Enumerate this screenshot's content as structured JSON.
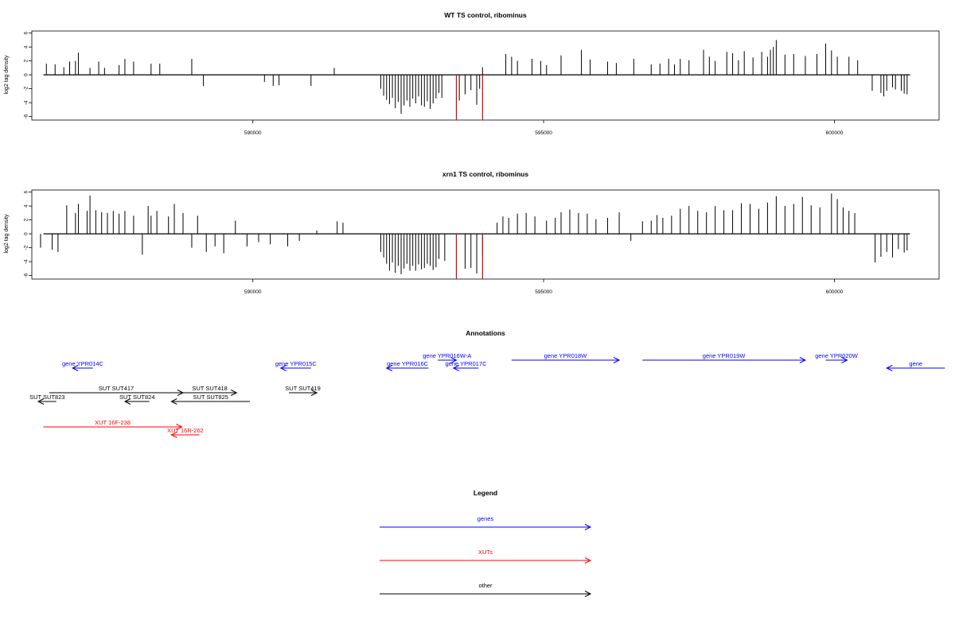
{
  "chart_data": [
    {
      "type": "bar",
      "title": "WT TS control, ribominus",
      "xlabel": "",
      "ylabel": "log2 tag density",
      "xlim": [
        586200,
        601800
      ],
      "ylim": [
        -6.5,
        6.3
      ],
      "yticks": [
        -6,
        -4,
        -2,
        0,
        2,
        4,
        6
      ],
      "xticks": [
        590000,
        595000,
        600000
      ],
      "xtick_labels": [
        "590000",
        "595000",
        "600000"
      ],
      "series": [
        {
          "color": "#000000",
          "points": [
            [
              586450,
              1.6
            ],
            [
              586600,
              1.5
            ],
            [
              586750,
              1.1
            ],
            [
              586850,
              1.9
            ],
            [
              586950,
              2.0
            ],
            [
              587000,
              3.2
            ],
            [
              587200,
              1.0
            ],
            [
              587350,
              1.9
            ],
            [
              587450,
              1.0
            ],
            [
              587700,
              1.4
            ],
            [
              587800,
              2.3
            ],
            [
              587950,
              1.9
            ],
            [
              588250,
              1.6
            ],
            [
              588400,
              1.6
            ],
            [
              588950,
              2.3
            ],
            [
              589150,
              -1.6
            ],
            [
              590200,
              -1.0
            ],
            [
              590350,
              -1.6
            ],
            [
              590450,
              -1.5
            ],
            [
              591000,
              -1.6
            ],
            [
              591400,
              1.0
            ],
            [
              592200,
              -2.0
            ],
            [
              592250,
              -3.0
            ],
            [
              592300,
              -3.6
            ],
            [
              592350,
              -4.2
            ],
            [
              592400,
              -3.3
            ],
            [
              592450,
              -4.8
            ],
            [
              592500,
              -3.9
            ],
            [
              592550,
              -5.6
            ],
            [
              592600,
              -4.4
            ],
            [
              592650,
              -3.7
            ],
            [
              592700,
              -4.6
            ],
            [
              592750,
              -3.4
            ],
            [
              592800,
              -4.1
            ],
            [
              592850,
              -3.1
            ],
            [
              592900,
              -4.4
            ],
            [
              592950,
              -4.6
            ],
            [
              593000,
              -3.8
            ],
            [
              593050,
              -4.9
            ],
            [
              593100,
              -4.1
            ],
            [
              593150,
              -3.4
            ],
            [
              593200,
              -2.6
            ],
            [
              593250,
              -3.3
            ],
            [
              593550,
              -3.7
            ],
            [
              593650,
              -2.8
            ],
            [
              593750,
              -2.2
            ],
            [
              593850,
              -4.3
            ],
            [
              593900,
              -2.0
            ],
            [
              593950,
              1.1
            ],
            [
              594350,
              3.0
            ],
            [
              594450,
              2.6
            ],
            [
              594550,
              2.0
            ],
            [
              594800,
              2.3
            ],
            [
              594950,
              2.0
            ],
            [
              595050,
              1.4
            ],
            [
              595300,
              2.8
            ],
            [
              595650,
              3.6
            ],
            [
              595800,
              2.2
            ],
            [
              596100,
              1.9
            ],
            [
              596250,
              1.7
            ],
            [
              596550,
              2.3
            ],
            [
              596850,
              1.5
            ],
            [
              597000,
              1.6
            ],
            [
              597150,
              2.3
            ],
            [
              597250,
              1.5
            ],
            [
              597350,
              2.3
            ],
            [
              597500,
              2.1
            ],
            [
              597750,
              3.6
            ],
            [
              597850,
              2.6
            ],
            [
              597950,
              2.0
            ],
            [
              598150,
              3.3
            ],
            [
              598250,
              3.1
            ],
            [
              598350,
              2.1
            ],
            [
              598450,
              3.4
            ],
            [
              598600,
              2.5
            ],
            [
              598750,
              3.3
            ],
            [
              598850,
              2.6
            ],
            [
              598900,
              3.6
            ],
            [
              598950,
              4.0
            ],
            [
              599000,
              5.0
            ],
            [
              599150,
              2.9
            ],
            [
              599300,
              3.0
            ],
            [
              599500,
              2.7
            ],
            [
              599700,
              3.0
            ],
            [
              599850,
              4.5
            ],
            [
              599950,
              3.5
            ],
            [
              600050,
              2.6
            ],
            [
              600250,
              2.6
            ],
            [
              600400,
              2.1
            ],
            [
              600650,
              -2.3
            ],
            [
              600800,
              -2.6
            ],
            [
              600850,
              -3.1
            ],
            [
              600900,
              -2.3
            ],
            [
              601000,
              -1.8
            ],
            [
              601050,
              -2.1
            ],
            [
              601150,
              -2.3
            ],
            [
              601200,
              -2.7
            ],
            [
              601250,
              -2.8
            ]
          ]
        },
        {
          "color": "#e00000",
          "points": [
            [
              593500,
              -6.5
            ],
            [
              593950,
              -6.5
            ]
          ]
        }
      ]
    },
    {
      "type": "bar",
      "title": "xrn1 TS control, ribominus",
      "xlabel": "",
      "ylabel": "log2 tag density",
      "xlim": [
        586200,
        601800
      ],
      "ylim": [
        -6.5,
        6.3
      ],
      "yticks": [
        -6,
        -4,
        -2,
        0,
        2,
        4,
        6
      ],
      "xticks": [
        590000,
        595000,
        600000
      ],
      "xtick_labels": [
        "590000",
        "595000",
        "600000"
      ],
      "series": [
        {
          "color": "#000000",
          "points": [
            [
              586350,
              -2.0
            ],
            [
              586550,
              -2.3
            ],
            [
              586650,
              -2.6
            ],
            [
              586800,
              4.1
            ],
            [
              586950,
              3.0
            ],
            [
              587000,
              4.3
            ],
            [
              587150,
              3.3
            ],
            [
              587200,
              5.5
            ],
            [
              587300,
              3.4
            ],
            [
              587400,
              3.1
            ],
            [
              587500,
              3.0
            ],
            [
              587600,
              3.3
            ],
            [
              587700,
              2.9
            ],
            [
              587800,
              3.3
            ],
            [
              587950,
              2.6
            ],
            [
              588100,
              -3.0
            ],
            [
              588200,
              4.0
            ],
            [
              588250,
              2.6
            ],
            [
              588350,
              3.3
            ],
            [
              588550,
              2.5
            ],
            [
              588650,
              4.3
            ],
            [
              588800,
              3.0
            ],
            [
              588950,
              -2.0
            ],
            [
              589050,
              2.6
            ],
            [
              589200,
              -2.6
            ],
            [
              589350,
              -1.8
            ],
            [
              589500,
              -2.8
            ],
            [
              589700,
              1.9
            ],
            [
              589900,
              -1.8
            ],
            [
              590100,
              -1.2
            ],
            [
              590300,
              -1.5
            ],
            [
              590600,
              -1.8
            ],
            [
              590800,
              -1.0
            ],
            [
              591100,
              0.5
            ],
            [
              591450,
              1.8
            ],
            [
              591550,
              1.6
            ],
            [
              592200,
              -2.6
            ],
            [
              592250,
              -3.4
            ],
            [
              592300,
              -4.3
            ],
            [
              592350,
              -5.3
            ],
            [
              592400,
              -4.1
            ],
            [
              592450,
              -5.6
            ],
            [
              592500,
              -4.6
            ],
            [
              592550,
              -5.8
            ],
            [
              592600,
              -5.0
            ],
            [
              592650,
              -4.3
            ],
            [
              592700,
              -5.3
            ],
            [
              592750,
              -4.6
            ],
            [
              592800,
              -5.3
            ],
            [
              592850,
              -4.4
            ],
            [
              592900,
              -5.1
            ],
            [
              592950,
              -4.9
            ],
            [
              593000,
              -4.3
            ],
            [
              593050,
              -4.6
            ],
            [
              593100,
              -5.2
            ],
            [
              593150,
              -4.8
            ],
            [
              593200,
              -3.6
            ],
            [
              593300,
              -3.9
            ],
            [
              593650,
              -5.0
            ],
            [
              593750,
              -4.9
            ],
            [
              593850,
              -5.7
            ],
            [
              593950,
              -3.1
            ],
            [
              594200,
              1.6
            ],
            [
              594300,
              2.5
            ],
            [
              594400,
              2.3
            ],
            [
              594550,
              2.9
            ],
            [
              594700,
              3.0
            ],
            [
              594850,
              2.5
            ],
            [
              595050,
              1.9
            ],
            [
              595200,
              2.3
            ],
            [
              595300,
              3.1
            ],
            [
              595450,
              3.5
            ],
            [
              595600,
              3.0
            ],
            [
              595750,
              2.9
            ],
            [
              595900,
              2.1
            ],
            [
              596100,
              2.3
            ],
            [
              596300,
              3.1
            ],
            [
              596500,
              -1.0
            ],
            [
              596700,
              1.8
            ],
            [
              596850,
              1.9
            ],
            [
              596950,
              2.7
            ],
            [
              597050,
              2.3
            ],
            [
              597200,
              2.6
            ],
            [
              597350,
              3.6
            ],
            [
              597500,
              4.0
            ],
            [
              597650,
              3.3
            ],
            [
              597800,
              3.1
            ],
            [
              597950,
              4.0
            ],
            [
              598100,
              3.4
            ],
            [
              598250,
              3.4
            ],
            [
              598400,
              4.4
            ],
            [
              598550,
              4.3
            ],
            [
              598700,
              3.6
            ],
            [
              598850,
              4.5
            ],
            [
              599000,
              5.4
            ],
            [
              599150,
              4.0
            ],
            [
              599300,
              4.3
            ],
            [
              599450,
              5.3
            ],
            [
              599600,
              4.1
            ],
            [
              599750,
              3.8
            ],
            [
              599950,
              5.8
            ],
            [
              600050,
              5.0
            ],
            [
              600150,
              3.8
            ],
            [
              600250,
              3.3
            ],
            [
              600350,
              3.0
            ],
            [
              600700,
              -4.1
            ],
            [
              600800,
              -3.3
            ],
            [
              600900,
              -2.6
            ],
            [
              601000,
              -3.4
            ],
            [
              601100,
              -2.2
            ],
            [
              601200,
              -2.7
            ],
            [
              601250,
              -2.4
            ]
          ]
        },
        {
          "color": "#e00000",
          "points": [
            [
              593500,
              -6.5
            ],
            [
              593950,
              -6.5
            ]
          ]
        }
      ]
    },
    {
      "type": "annotation-track",
      "title": "Annotations",
      "features": [
        {
          "label": "gene YPR014C",
          "start": 586900,
          "end": 587250,
          "strand": "-",
          "color": "#0000ff",
          "row": 1
        },
        {
          "label": "gene YPR015C",
          "start": 590480,
          "end": 591000,
          "strand": "-",
          "color": "#0000ff",
          "row": 1
        },
        {
          "label": "gene YPR016W-A",
          "start": 593180,
          "end": 593500,
          "strand": "+",
          "color": "#0000ff",
          "row": 0
        },
        {
          "label": "gene YPR016C",
          "start": 592300,
          "end": 593020,
          "strand": "-",
          "color": "#0000ff",
          "row": 1
        },
        {
          "label": "gene YPR017C",
          "start": 593450,
          "end": 593880,
          "strand": "-",
          "color": "#0000ff",
          "row": 1
        },
        {
          "label": "gene YPR018W",
          "start": 594450,
          "end": 596300,
          "strand": "+",
          "color": "#0000ff",
          "row": 0
        },
        {
          "label": "gene YPR019W",
          "start": 596700,
          "end": 599500,
          "strand": "+",
          "color": "#0000ff",
          "row": 0
        },
        {
          "label": "gene YPR020W",
          "start": 599850,
          "end": 600220,
          "strand": "+",
          "color": "#0000ff",
          "row": 0
        },
        {
          "label": "gene",
          "start": 600900,
          "end": 601900,
          "strand": "-",
          "color": "#0000ff",
          "row": 1
        },
        {
          "label": "SUT SUT417",
          "start": 586500,
          "end": 588800,
          "strand": "+",
          "color": "#000000",
          "row": 3
        },
        {
          "label": "SUT SUT418",
          "start": 588800,
          "end": 589720,
          "strand": "+",
          "color": "#000000",
          "row": 3
        },
        {
          "label": "SUT SUT419",
          "start": 590620,
          "end": 591100,
          "strand": "+",
          "color": "#000000",
          "row": 3
        },
        {
          "label": "SUT SUT823",
          "start": 585800,
          "end": 586620,
          "strand": "-",
          "color": "#000000",
          "row": 4
        },
        {
          "label": "SUT SUT824",
          "start": 587800,
          "end": 588220,
          "strand": "-",
          "color": "#000000",
          "row": 4
        },
        {
          "label": "SUT SUT825",
          "start": 588600,
          "end": 589950,
          "strand": "-",
          "color": "#000000",
          "row": 4
        },
        {
          "label": "XUT 16F-238",
          "start": 586400,
          "end": 588780,
          "strand": "+",
          "color": "#ff0000",
          "row": 6
        },
        {
          "label": "XUT 16R-262",
          "start": 588600,
          "end": 589080,
          "strand": "-",
          "color": "#ff0000",
          "row": 7
        }
      ]
    },
    {
      "type": "legend",
      "title": "Legend",
      "items": [
        {
          "label": "genes",
          "color": "#0000ff"
        },
        {
          "label": "XUTs",
          "color": "#ff0000"
        },
        {
          "label": "other",
          "color": "#000000"
        }
      ]
    }
  ]
}
